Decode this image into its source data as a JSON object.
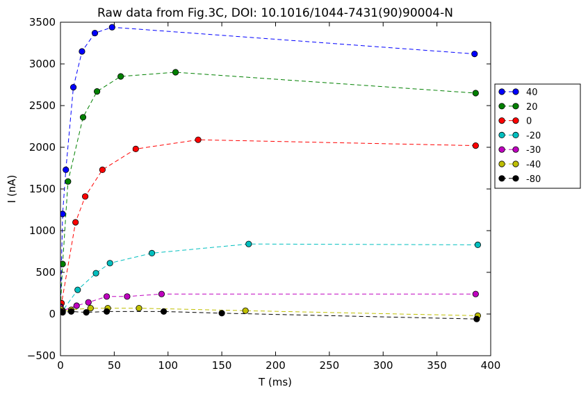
{
  "chart_data": {
    "type": "line",
    "title": "Raw data from Fig.3C, DOI: 10.1016/1044-7431(90)90004-N",
    "xlabel": "T (ms)",
    "ylabel": "I (nA)",
    "xlim": [
      0,
      400
    ],
    "ylim": [
      -500,
      3500
    ],
    "xticks": [
      "0",
      "50",
      "100",
      "150",
      "200",
      "250",
      "300",
      "350",
      "400"
    ],
    "yticks": [
      "−500",
      "0",
      "500",
      "1000",
      "1500",
      "2000",
      "2500",
      "3000",
      "3500"
    ],
    "grid": false,
    "legend_position": "right",
    "series": [
      {
        "name": "40",
        "color": "#0000ff",
        "x": [
          0,
          2,
          5,
          12,
          20,
          32,
          48,
          385
        ],
        "y": [
          60,
          1200,
          1730,
          2720,
          3150,
          3370,
          3440,
          3120
        ]
      },
      {
        "name": "20",
        "color": "#008000",
        "x": [
          0,
          2,
          7,
          21,
          34,
          56,
          107,
          386
        ],
        "y": [
          80,
          600,
          1590,
          2360,
          2670,
          2850,
          2900,
          2650
        ]
      },
      {
        "name": "0",
        "color": "#ff0000",
        "x": [
          0,
          1,
          14,
          23,
          39,
          70,
          128,
          386
        ],
        "y": [
          90,
          130,
          1100,
          1410,
          1730,
          1980,
          2090,
          2020
        ]
      },
      {
        "name": "-20",
        "color": "#00bfbf",
        "x": [
          0,
          2,
          16,
          33,
          46,
          85,
          175,
          388
        ],
        "y": [
          90,
          40,
          290,
          490,
          610,
          730,
          840,
          830
        ]
      },
      {
        "name": "-30",
        "color": "#bf00bf",
        "x": [
          0,
          2,
          15,
          26,
          43,
          62,
          94,
          386
        ],
        "y": [
          80,
          40,
          100,
          140,
          210,
          210,
          240,
          240
        ]
      },
      {
        "name": "-40",
        "color": "#bfbf00",
        "x": [
          0,
          2,
          10,
          28,
          44,
          73,
          172,
          388
        ],
        "y": [
          60,
          30,
          50,
          70,
          70,
          70,
          40,
          -20
        ]
      },
      {
        "name": "-80",
        "color": "#000000",
        "x": [
          0,
          2,
          10,
          24,
          43,
          96,
          150,
          387
        ],
        "y": [
          30,
          20,
          30,
          20,
          30,
          30,
          10,
          -60
        ]
      }
    ]
  }
}
